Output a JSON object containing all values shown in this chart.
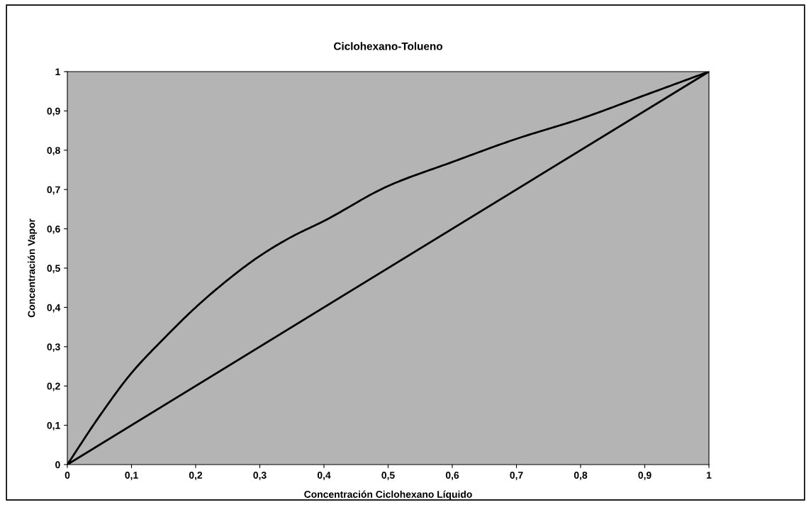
{
  "chart_data": {
    "type": "line",
    "title": "Ciclohexano-Tolueno",
    "xlabel": "Concentración Ciclohexano Líquido",
    "ylabel": "Concentración Vapor",
    "series": [
      {
        "color": "#000000",
        "x": [
          0,
          0.05,
          0.1,
          0.15,
          0.2,
          0.25,
          0.3,
          0.35,
          0.4,
          0.5,
          0.6,
          0.7,
          0.8,
          0.9,
          1
        ],
        "values": [
          0,
          0.123,
          0.233,
          0.32,
          0.4,
          0.47,
          0.531,
          0.58,
          0.62,
          0.709,
          0.77,
          0.829,
          0.88,
          0.94,
          1
        ]
      },
      {
        "color": "#000000",
        "x": [
          0,
          1
        ],
        "values": [
          0,
          1
        ]
      }
    ],
    "xlim": [
      0,
      1
    ],
    "ylim": [
      0,
      1
    ],
    "xticks": [
      {
        "value": 0,
        "label": "0"
      },
      {
        "value": 0.1,
        "label": "0,1"
      },
      {
        "value": 0.2,
        "label": "0,2"
      },
      {
        "value": 0.3,
        "label": "0,3"
      },
      {
        "value": 0.4,
        "label": "0,4"
      },
      {
        "value": 0.5,
        "label": "0,5"
      },
      {
        "value": 0.6,
        "label": "0,6"
      },
      {
        "value": 0.7,
        "label": "0,7"
      },
      {
        "value": 0.8,
        "label": "0,8"
      },
      {
        "value": 0.9,
        "label": "0,9"
      },
      {
        "value": 1,
        "label": "1"
      }
    ],
    "yticks": [
      {
        "value": 0,
        "label": "0"
      },
      {
        "value": 0.1,
        "label": "0,1"
      },
      {
        "value": 0.2,
        "label": "0,2"
      },
      {
        "value": 0.3,
        "label": "0,3"
      },
      {
        "value": 0.4,
        "label": "0,4"
      },
      {
        "value": 0.5,
        "label": "0,5"
      },
      {
        "value": 0.6,
        "label": "0,6"
      },
      {
        "value": 0.7,
        "label": "0,7"
      },
      {
        "value": 0.8,
        "label": "0,8"
      },
      {
        "value": 0.9,
        "label": "0,9"
      },
      {
        "value": 1,
        "label": "1"
      }
    ],
    "grid": false,
    "marker": "none",
    "line_style": "solid"
  }
}
